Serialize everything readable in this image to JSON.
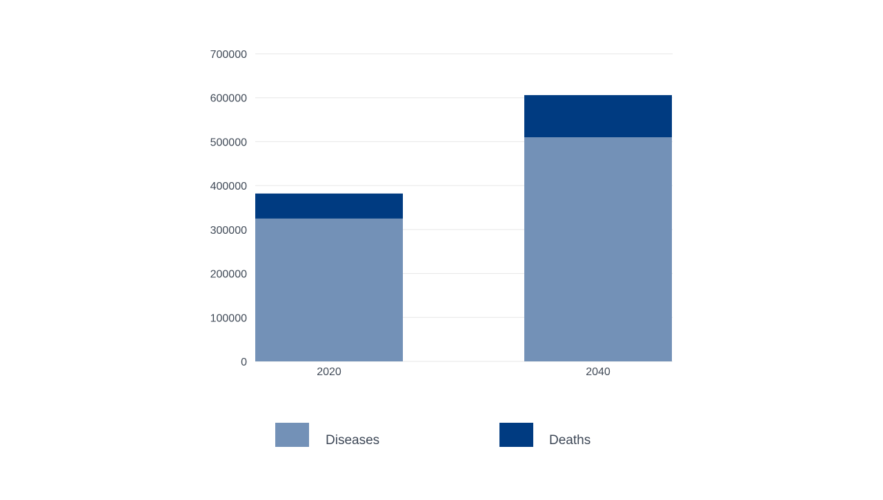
{
  "chart_data": {
    "type": "bar",
    "stacked": true,
    "categories": [
      "2020",
      "2040"
    ],
    "series": [
      {
        "name": "Diseases",
        "values": [
          325000,
          510000
        ],
        "color": "#7391b7"
      },
      {
        "name": "Deaths",
        "values": [
          57000,
          96000
        ],
        "color": "#003b81"
      }
    ],
    "ylim": [
      0,
      700000
    ],
    "yticks": [
      0,
      100000,
      200000,
      300000,
      400000,
      500000,
      600000,
      700000
    ],
    "ytick_labels": [
      "0",
      "100000",
      "200000",
      "300000",
      "400000",
      "500000",
      "600000",
      "700000"
    ],
    "grid": true,
    "gridline_color": "#e6e6e6",
    "axis_text_color": "#404a57",
    "legend_position": "bottom",
    "title": "",
    "xlabel": "",
    "ylabel": ""
  }
}
